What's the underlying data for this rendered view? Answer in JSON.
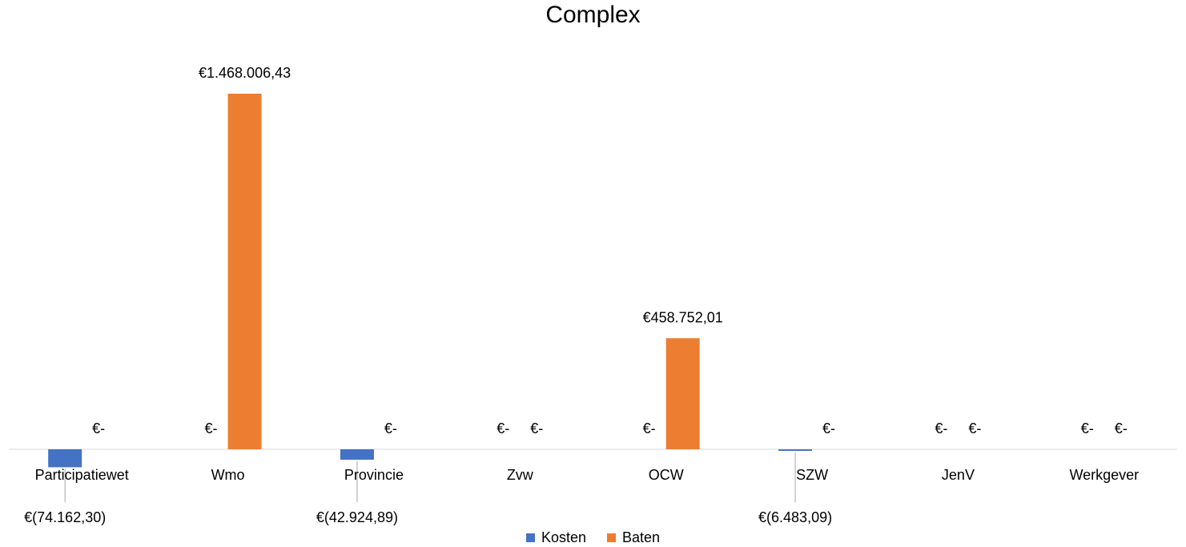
{
  "chart_data": {
    "type": "bar",
    "title": "Complex",
    "categories": [
      "Participatiewet",
      "Wmo",
      "Provincie",
      "Zvw",
      "OCW",
      "SZW",
      "JenV",
      "Werkgever"
    ],
    "series": [
      {
        "name": "Kosten",
        "color": "#4472C4",
        "values": [
          -74162.3,
          0,
          -42924.89,
          0,
          0,
          -6483.09,
          0,
          0
        ],
        "labels": [
          "€(74.162,30)",
          "€-",
          "€(42.924,89)",
          "€-",
          "€-",
          "€(6.483,09)",
          "€-",
          "€-"
        ]
      },
      {
        "name": "Baten",
        "color": "#ED7D31",
        "values": [
          0,
          1468006.43,
          0,
          0,
          458752.01,
          0,
          0,
          0
        ],
        "labels": [
          "€-",
          "€1.468.006,43",
          "€-",
          "€-",
          "€458.752,01",
          "€-",
          "€-",
          "€-"
        ]
      }
    ],
    "ylim": [
      -100000,
      1500000
    ],
    "grid": false,
    "legend_position": "bottom"
  }
}
